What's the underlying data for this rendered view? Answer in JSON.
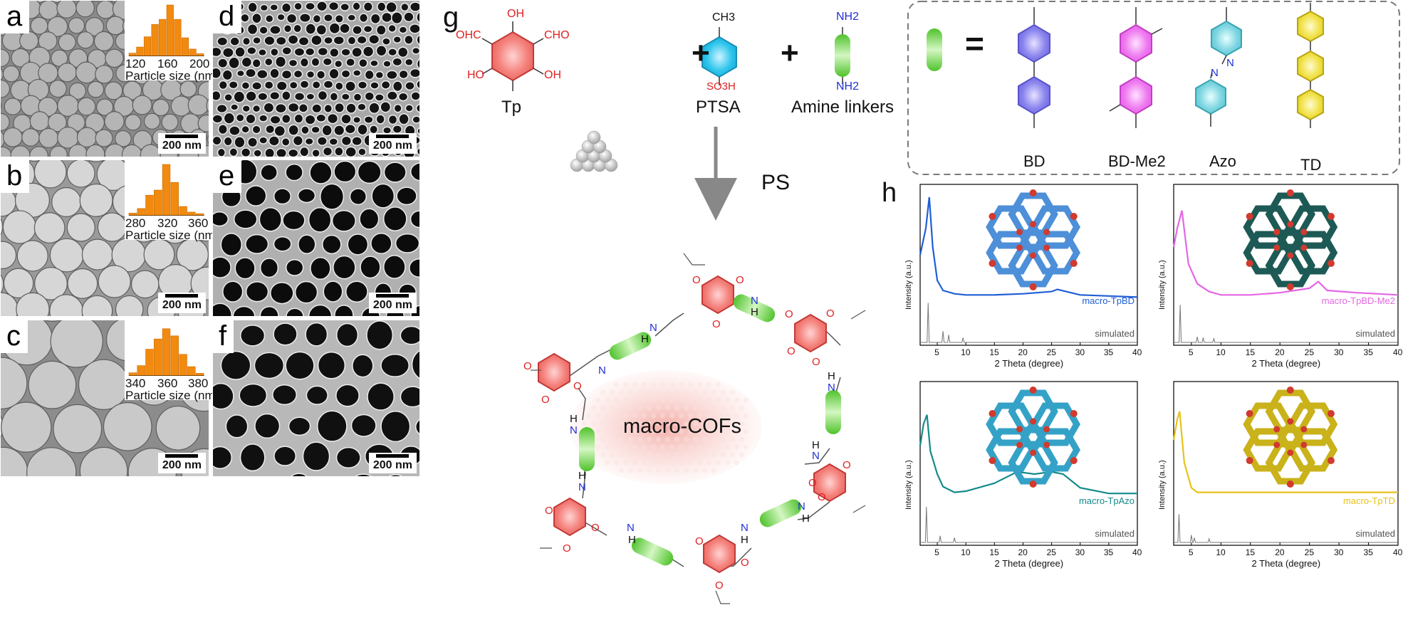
{
  "sem_panels": [
    {
      "label": "a",
      "scale": "200 nm",
      "hist_ticks": [
        "120",
        "160",
        "200"
      ],
      "hist_xlabel": "Particle size (nm)",
      "hist_values": [
        0.06,
        0.18,
        0.38,
        0.62,
        0.72,
        1.0,
        0.72,
        0.36,
        0.14,
        0.05
      ]
    },
    {
      "label": "b",
      "scale": "200 nm",
      "hist_ticks": [
        "280",
        "320",
        "360"
      ],
      "hist_xlabel": "Particle size (nm)",
      "hist_values": [
        0.05,
        0.14,
        0.4,
        0.5,
        1.0,
        0.65,
        0.18,
        0.07,
        0.04
      ]
    },
    {
      "label": "c",
      "scale": "200 nm",
      "hist_ticks": [
        "340",
        "360",
        "380"
      ],
      "hist_xlabel": "Particle size (nm)",
      "hist_values": [
        0.06,
        0.2,
        0.52,
        0.72,
        0.92,
        0.78,
        0.42,
        0.18,
        0.05
      ]
    },
    {
      "label": "d",
      "scale": "200 nm"
    },
    {
      "label": "e",
      "scale": "200 nm"
    },
    {
      "label": "f",
      "scale": "200 nm"
    }
  ],
  "scheme": {
    "label": "g",
    "reactants": [
      "Tp",
      "PTSA",
      "Amine linkers"
    ],
    "template_label": "PS",
    "product_label": "macro-COFs",
    "atoms": {
      "oxygen": "O",
      "nitrogen": "N",
      "hydrogen": "H",
      "aldehyde": "OHC",
      "aldehyde_r": "CHO",
      "hydroxyl": "OH",
      "hydroxyl_l": "HO",
      "methyl": "CH3",
      "sulfonic": "SO3H",
      "amine": "NH2"
    },
    "linkers": [
      "BD",
      "BD-Me2",
      "Azo",
      "TD"
    ],
    "equals": "=",
    "plus": "+"
  },
  "xrd": {
    "label": "h",
    "ylabel": "Intensity (a.u.)",
    "xlabel": "2 Theta (degree)",
    "ticks": [
      "5",
      "10",
      "15",
      "20",
      "25",
      "30",
      "35",
      "40"
    ],
    "sim_label": "simulated"
  },
  "chart_data": [
    {
      "type": "line",
      "title": "",
      "xlabel": "2 Theta (degree)",
      "ylabel": "Intensity (a.u.)",
      "xlim": [
        2,
        40
      ],
      "series": [
        {
          "name": "macro-TpBD",
          "color": "#1f5fd6",
          "x": [
            2,
            3,
            3.6,
            4.2,
            5,
            6,
            8,
            10,
            15,
            20,
            25,
            26,
            30,
            35,
            40
          ],
          "y": [
            0.48,
            0.72,
            1.0,
            0.55,
            0.25,
            0.16,
            0.13,
            0.12,
            0.12,
            0.13,
            0.15,
            0.17,
            0.12,
            0.11,
            0.1
          ]
        },
        {
          "name": "simulated",
          "color": "#777777",
          "x": [
            3.4,
            6,
            7,
            9.5
          ],
          "y": [
            0.42,
            0.12,
            0.08,
            0.05
          ]
        }
      ]
    },
    {
      "type": "line",
      "title": "",
      "xlabel": "2 Theta (degree)",
      "ylabel": "Intensity (a.u.)",
      "xlim": [
        2,
        40
      ],
      "series": [
        {
          "name": "macro-TpBD-Me2",
          "color": "#e466e4",
          "x": [
            2,
            2.6,
            3.4,
            4.5,
            6,
            8,
            10,
            15,
            20,
            25,
            26.5,
            28,
            33,
            40
          ],
          "y": [
            0.55,
            0.72,
            0.88,
            0.4,
            0.22,
            0.15,
            0.12,
            0.12,
            0.14,
            0.18,
            0.24,
            0.16,
            0.14,
            0.12
          ]
        },
        {
          "name": "simulated",
          "color": "#777777",
          "x": [
            3.1,
            6,
            7,
            8.8
          ],
          "y": [
            0.4,
            0.06,
            0.05,
            0.04
          ]
        }
      ]
    },
    {
      "type": "line",
      "title": "",
      "xlabel": "2 Theta (degree)",
      "ylabel": "Intensity (a.u.)",
      "xlim": [
        2,
        40
      ],
      "series": [
        {
          "name": "macro-TpAzo",
          "color": "#148a8a",
          "x": [
            2,
            2.6,
            3.2,
            3.8,
            5,
            6,
            8,
            10,
            15,
            19,
            22,
            25,
            27,
            30,
            35,
            40
          ],
          "y": [
            0.55,
            0.74,
            0.82,
            0.5,
            0.3,
            0.19,
            0.14,
            0.15,
            0.22,
            0.32,
            0.3,
            0.32,
            0.3,
            0.18,
            0.13,
            0.13
          ]
        },
        {
          "name": "simulated",
          "color": "#777777",
          "x": [
            3.1,
            5.5,
            8
          ],
          "y": [
            0.38,
            0.07,
            0.05
          ]
        }
      ]
    },
    {
      "type": "line",
      "title": "",
      "xlabel": "2 Theta (degree)",
      "ylabel": "Intensity (a.u.)",
      "xlim": [
        2,
        40
      ],
      "series": [
        {
          "name": "macro-TpTD",
          "color": "#e8c21a",
          "x": [
            2,
            2.6,
            3.0,
            3.8,
            5,
            6,
            10,
            20,
            30,
            40
          ],
          "y": [
            0.6,
            0.78,
            0.85,
            0.4,
            0.18,
            0.14,
            0.14,
            0.14,
            0.14,
            0.14
          ]
        },
        {
          "name": "simulated",
          "color": "#777777",
          "x": [
            2.9,
            5,
            5.5,
            8
          ],
          "y": [
            0.3,
            0.08,
            0.05,
            0.04
          ]
        }
      ]
    }
  ]
}
